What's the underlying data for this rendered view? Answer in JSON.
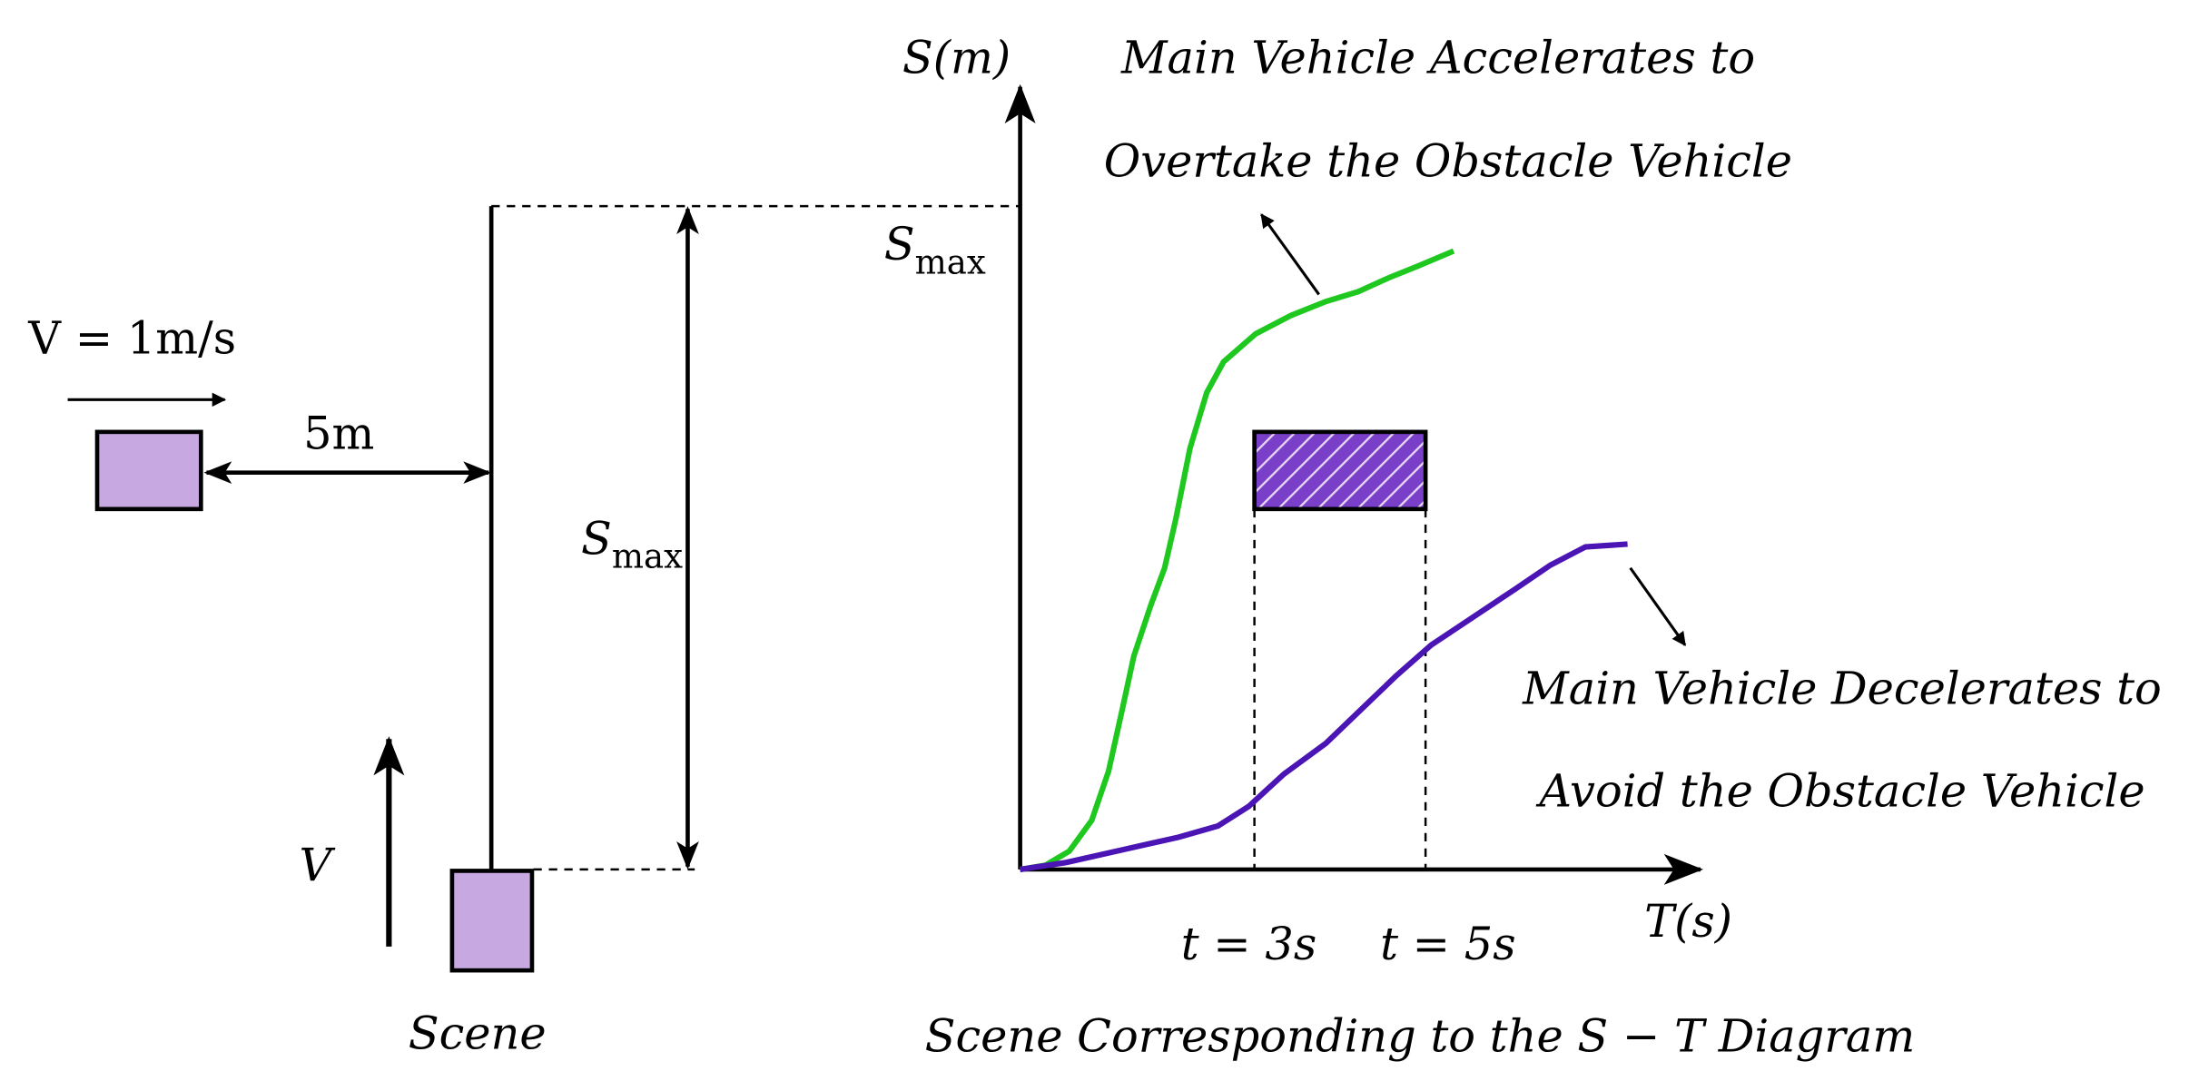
{
  "left_scene": {
    "speed_label": "V = 1m/s",
    "gap_label": "5m",
    "range_label": {
      "main": "S",
      "sub": "max"
    },
    "velocity_label": "V",
    "caption": "Scene"
  },
  "st_diagram": {
    "y_axis_label": "S(m)",
    "x_axis_label": "T(s)",
    "y_max_label": {
      "main": "S",
      "sub": "max"
    },
    "time_labels": [
      "t = 3s",
      "t = 5s"
    ],
    "accelerate_annotation": [
      "Main Vehicle Accelerates to",
      "Overtake the Obstacle Vehicle"
    ],
    "decelerate_annotation": [
      "Main Vehicle Decelerates to",
      "Avoid the Obstacle Vehicle"
    ],
    "caption": "Scene Corresponding to the S − T Diagram"
  }
}
